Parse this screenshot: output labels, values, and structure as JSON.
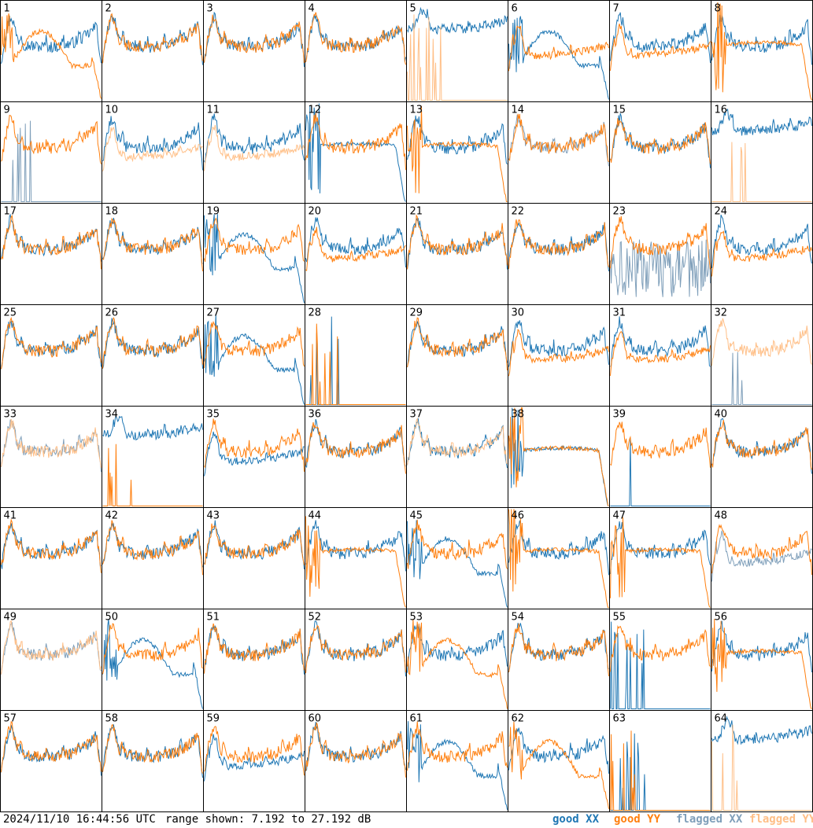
{
  "footer": {
    "timestamp": "2024/11/10 16:44:56 UTC",
    "range_text": "range shown: 7.192 to 27.192 dB"
  },
  "legend": [
    {
      "label": "good XX",
      "color": "#1f77b4"
    },
    {
      "label": "good YY",
      "color": "#ff7f0e"
    },
    {
      "label": "flagged XX",
      "color": "#7f9fba"
    },
    {
      "label": "flagged YY",
      "color": "#ffbf87"
    }
  ],
  "chart_data": {
    "type": "line",
    "title": "",
    "range_db": [
      7.192,
      27.192
    ],
    "grid_rows": 8,
    "grid_cols": 8,
    "panels": [
      {
        "id": "1",
        "xx": "good",
        "yy": "good",
        "xx_shape": "A",
        "yy_shape": "C"
      },
      {
        "id": "2",
        "xx": "good",
        "yy": "good",
        "xx_shape": "A",
        "yy_shape": "A"
      },
      {
        "id": "3",
        "xx": "good",
        "yy": "good",
        "xx_shape": "A",
        "yy_shape": "A"
      },
      {
        "id": "4",
        "xx": "good",
        "yy": "good",
        "xx_shape": "A",
        "yy_shape": "A"
      },
      {
        "id": "5",
        "xx": "good",
        "yy": "flagged",
        "xx_shape": "H",
        "yy_shape": "F"
      },
      {
        "id": "6",
        "xx": "good",
        "yy": "good",
        "xx_shape": "C",
        "yy_shape": "B"
      },
      {
        "id": "7",
        "xx": "good",
        "yy": "good",
        "xx_shape": "A",
        "yy_shape": "B"
      },
      {
        "id": "8",
        "xx": "good",
        "yy": "good",
        "xx_shape": "A",
        "yy_shape": "D"
      },
      {
        "id": "9",
        "xx": "flagged",
        "yy": "good",
        "xx_shape": "F",
        "yy_shape": "A"
      },
      {
        "id": "10",
        "xx": "good",
        "yy": "flagged",
        "xx_shape": "A",
        "yy_shape": "B"
      },
      {
        "id": "11",
        "xx": "good",
        "yy": "flagged",
        "xx_shape": "A",
        "yy_shape": "B"
      },
      {
        "id": "12",
        "xx": "good",
        "yy": "good",
        "xx_shape": "D",
        "yy_shape": "A"
      },
      {
        "id": "13",
        "xx": "good",
        "yy": "good",
        "xx_shape": "A",
        "yy_shape": "D"
      },
      {
        "id": "14",
        "xx": "flagged",
        "yy": "good",
        "xx_shape": "A",
        "yy_shape": "A"
      },
      {
        "id": "15",
        "xx": "good",
        "yy": "good",
        "xx_shape": "A",
        "yy_shape": "A"
      },
      {
        "id": "16",
        "xx": "good",
        "yy": "flagged",
        "xx_shape": "H",
        "yy_shape": "F"
      },
      {
        "id": "17",
        "xx": "good",
        "yy": "good",
        "xx_shape": "A",
        "yy_shape": "A"
      },
      {
        "id": "18",
        "xx": "good",
        "yy": "good",
        "xx_shape": "A",
        "yy_shape": "A"
      },
      {
        "id": "19",
        "xx": "good",
        "yy": "good",
        "xx_shape": "C",
        "yy_shape": "A"
      },
      {
        "id": "20",
        "xx": "good",
        "yy": "good",
        "xx_shape": "A",
        "yy_shape": "B"
      },
      {
        "id": "21",
        "xx": "good",
        "yy": "good",
        "xx_shape": "A",
        "yy_shape": "A"
      },
      {
        "id": "22",
        "xx": "good",
        "yy": "good",
        "xx_shape": "A",
        "yy_shape": "A"
      },
      {
        "id": "23",
        "xx": "flagged",
        "yy": "good",
        "xx_shape": "G",
        "yy_shape": "A"
      },
      {
        "id": "24",
        "xx": "good",
        "yy": "good",
        "xx_shape": "A",
        "yy_shape": "B"
      },
      {
        "id": "25",
        "xx": "good",
        "yy": "good",
        "xx_shape": "A",
        "yy_shape": "A"
      },
      {
        "id": "26",
        "xx": "good",
        "yy": "good",
        "xx_shape": "A",
        "yy_shape": "A"
      },
      {
        "id": "27",
        "xx": "good",
        "yy": "good",
        "xx_shape": "C",
        "yy_shape": "A"
      },
      {
        "id": "28",
        "xx": "good",
        "yy": "good",
        "xx_shape": "F",
        "yy_shape": "F"
      },
      {
        "id": "29",
        "xx": "good",
        "yy": "good",
        "xx_shape": "A",
        "yy_shape": "A"
      },
      {
        "id": "30",
        "xx": "good",
        "yy": "good",
        "xx_shape": "A",
        "yy_shape": "B"
      },
      {
        "id": "31",
        "xx": "good",
        "yy": "good",
        "xx_shape": "A",
        "yy_shape": "B"
      },
      {
        "id": "32",
        "xx": "flagged",
        "yy": "flagged",
        "xx_shape": "F",
        "yy_shape": "A"
      },
      {
        "id": "33",
        "xx": "flagged",
        "yy": "flagged",
        "xx_shape": "A",
        "yy_shape": "A"
      },
      {
        "id": "34",
        "xx": "good",
        "yy": "good",
        "xx_shape": "H",
        "yy_shape": "F"
      },
      {
        "id": "35",
        "xx": "good",
        "yy": "good",
        "xx_shape": "B",
        "yy_shape": "A"
      },
      {
        "id": "36",
        "xx": "good",
        "yy": "good",
        "xx_shape": "A",
        "yy_shape": "A"
      },
      {
        "id": "37",
        "xx": "good",
        "yy": "flagged",
        "xx_shape": "A",
        "yy_shape": "A"
      },
      {
        "id": "38",
        "xx": "good",
        "yy": "good",
        "xx_shape": "D",
        "yy_shape": "D"
      },
      {
        "id": "39",
        "xx": "good",
        "yy": "good",
        "xx_shape": "F",
        "yy_shape": "A"
      },
      {
        "id": "40",
        "xx": "good",
        "yy": "good",
        "xx_shape": "A",
        "yy_shape": "A"
      },
      {
        "id": "41",
        "xx": "good",
        "yy": "good",
        "xx_shape": "A",
        "yy_shape": "A"
      },
      {
        "id": "42",
        "xx": "good",
        "yy": "good",
        "xx_shape": "A",
        "yy_shape": "A"
      },
      {
        "id": "43",
        "xx": "good",
        "yy": "good",
        "xx_shape": "A",
        "yy_shape": "A"
      },
      {
        "id": "44",
        "xx": "good",
        "yy": "good",
        "xx_shape": "A",
        "yy_shape": "D"
      },
      {
        "id": "45",
        "xx": "good",
        "yy": "good",
        "xx_shape": "C",
        "yy_shape": "A"
      },
      {
        "id": "46",
        "xx": "good",
        "yy": "good",
        "xx_shape": "A",
        "yy_shape": "D"
      },
      {
        "id": "47",
        "xx": "good",
        "yy": "good",
        "xx_shape": "A",
        "yy_shape": "D"
      },
      {
        "id": "48",
        "xx": "flagged",
        "yy": "good",
        "xx_shape": "B",
        "yy_shape": "A"
      },
      {
        "id": "49",
        "xx": "flagged",
        "yy": "flagged",
        "xx_shape": "A",
        "yy_shape": "A"
      },
      {
        "id": "50",
        "xx": "good",
        "yy": "good",
        "xx_shape": "C",
        "yy_shape": "A"
      },
      {
        "id": "51",
        "xx": "good",
        "yy": "good",
        "xx_shape": "A",
        "yy_shape": "A"
      },
      {
        "id": "52",
        "xx": "good",
        "yy": "good",
        "xx_shape": "A",
        "yy_shape": "A"
      },
      {
        "id": "53",
        "xx": "good",
        "yy": "good",
        "xx_shape": "A",
        "yy_shape": "C"
      },
      {
        "id": "54",
        "xx": "good",
        "yy": "good",
        "xx_shape": "A",
        "yy_shape": "A"
      },
      {
        "id": "55",
        "xx": "good",
        "yy": "good",
        "xx_shape": "F",
        "yy_shape": "A"
      },
      {
        "id": "56",
        "xx": "good",
        "yy": "good",
        "xx_shape": "A",
        "yy_shape": "D"
      },
      {
        "id": "57",
        "xx": "good",
        "yy": "good",
        "xx_shape": "A",
        "yy_shape": "A"
      },
      {
        "id": "58",
        "xx": "good",
        "yy": "good",
        "xx_shape": "A",
        "yy_shape": "A"
      },
      {
        "id": "59",
        "xx": "good",
        "yy": "good",
        "xx_shape": "B",
        "yy_shape": "A"
      },
      {
        "id": "60",
        "xx": "good",
        "yy": "good",
        "xx_shape": "A",
        "yy_shape": "A"
      },
      {
        "id": "61",
        "xx": "good",
        "yy": "good",
        "xx_shape": "C",
        "yy_shape": "A"
      },
      {
        "id": "62",
        "xx": "good",
        "yy": "good",
        "xx_shape": "A",
        "yy_shape": "C"
      },
      {
        "id": "63",
        "xx": "good",
        "yy": "good",
        "xx_shape": "F",
        "yy_shape": "F"
      },
      {
        "id": "64",
        "xx": "good",
        "yy": "flagged",
        "xx_shape": "H",
        "yy_shape": "F"
      }
    ]
  }
}
